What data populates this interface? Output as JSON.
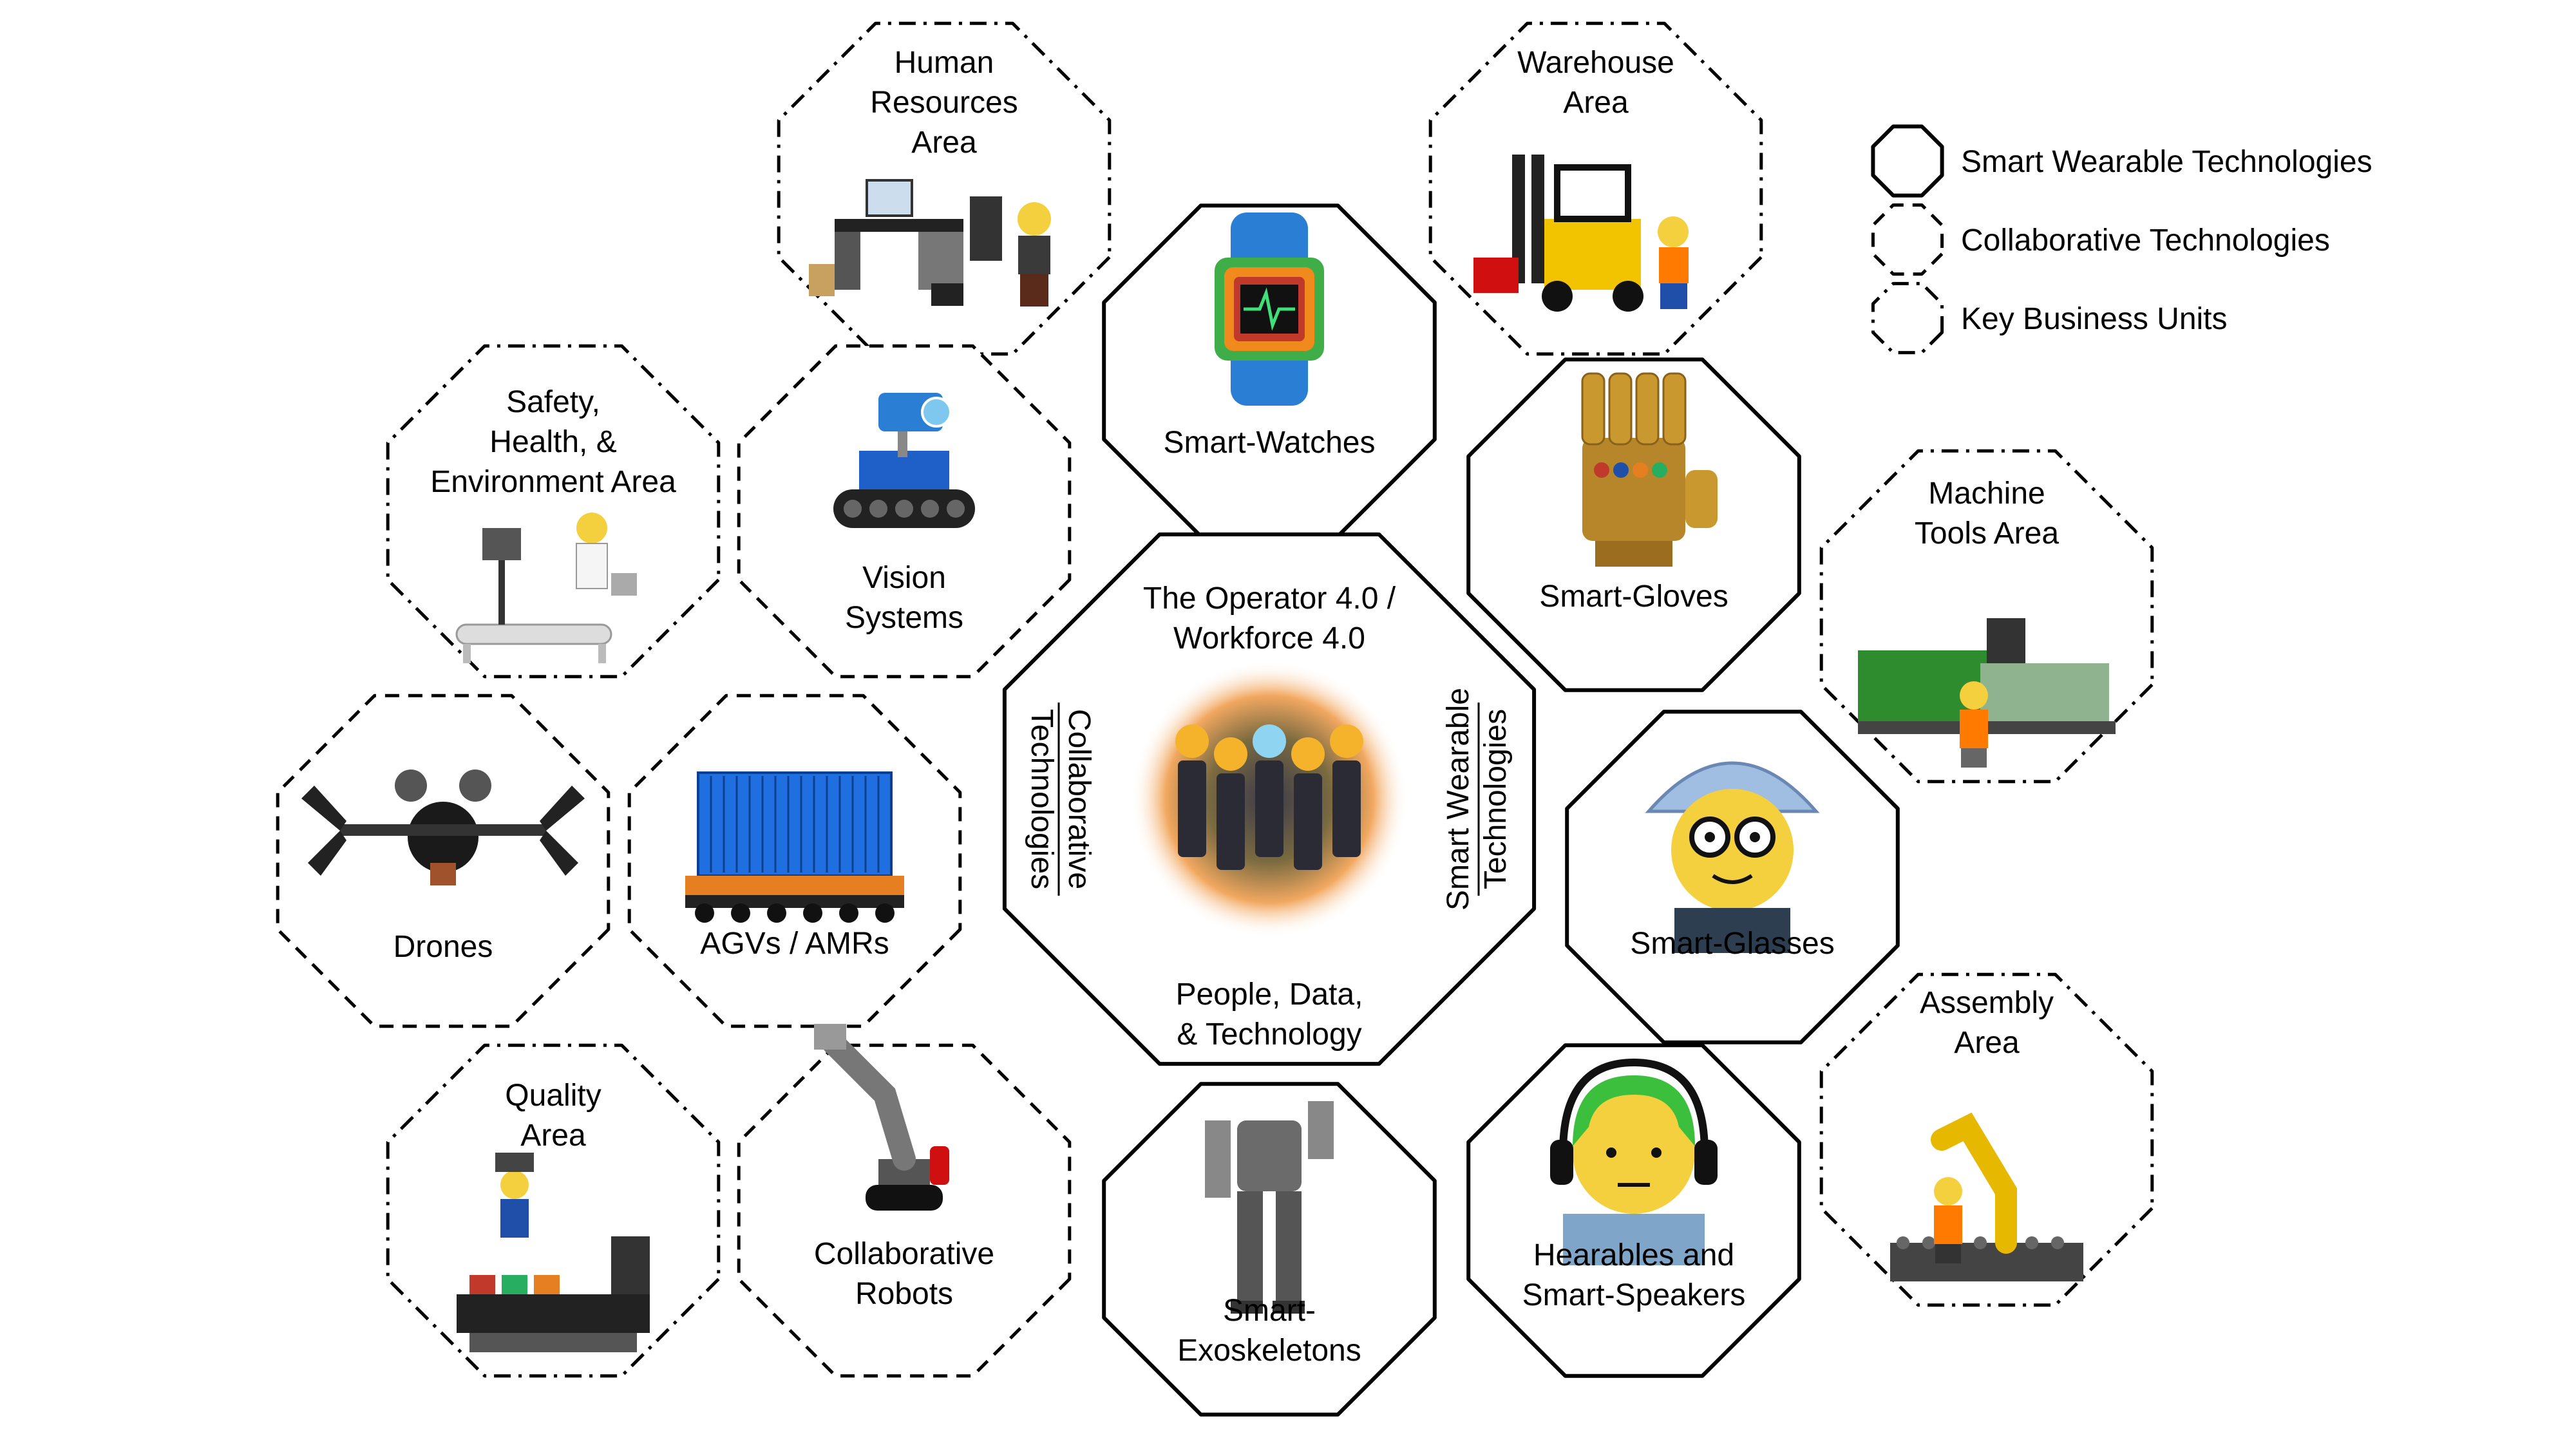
{
  "center": {
    "title": [
      "The Operator 4.0 /",
      "Workforce 4.0"
    ],
    "subtitle": [
      "People, Data,",
      "& Technology"
    ],
    "left_side": [
      "Collaborative",
      "Technologies"
    ],
    "right_side": [
      "Smart Wearable",
      "Technologies"
    ]
  },
  "legend": [
    {
      "style": "solid",
      "label": "Smart Wearable Technologies"
    },
    {
      "style": "dashed",
      "label": "Collaborative Technologies"
    },
    {
      "style": "dashdot",
      "label": "Key Business Units"
    }
  ],
  "nodes": [
    {
      "id": "human-resources",
      "style": "dashdot",
      "labels": [
        "Human",
        "Resources",
        "Area"
      ],
      "icon": "office-desk-icon"
    },
    {
      "id": "warehouse",
      "style": "dashdot",
      "labels": [
        "Warehouse",
        "Area"
      ],
      "icon": "forklift-icon"
    },
    {
      "id": "smart-watches",
      "style": "solid",
      "labels": [
        "Smart-Watches"
      ],
      "icon": "smart-watch-icon"
    },
    {
      "id": "safety-health-environment",
      "style": "dashdot",
      "labels": [
        "Safety,",
        "Health, &",
        "Environment Area"
      ],
      "icon": "medic-stretcher-icon"
    },
    {
      "id": "vision-systems",
      "style": "dashed",
      "labels": [
        "Vision",
        "Systems"
      ],
      "icon": "camera-rover-icon"
    },
    {
      "id": "smart-gloves",
      "style": "solid",
      "labels": [
        "Smart-Gloves"
      ],
      "icon": "glove-icon"
    },
    {
      "id": "machine-tools",
      "style": "dashdot",
      "labels": [
        "Machine",
        "Tools Area"
      ],
      "icon": "machine-tool-icon"
    },
    {
      "id": "drones",
      "style": "dashed",
      "labels": [
        "Drones"
      ],
      "icon": "drone-icon"
    },
    {
      "id": "agvs-amrs",
      "style": "dashed",
      "labels": [
        "AGVs / AMRs"
      ],
      "icon": "agv-container-icon"
    },
    {
      "id": "smart-glasses",
      "style": "solid",
      "labels": [
        "Smart-Glasses"
      ],
      "icon": "glasses-figure-icon"
    },
    {
      "id": "quality",
      "style": "dashdot",
      "labels": [
        "Quality",
        "Area"
      ],
      "icon": "quality-station-icon"
    },
    {
      "id": "collaborative-robots",
      "style": "dashed",
      "labels": [
        "Collaborative",
        "Robots"
      ],
      "icon": "robot-arm-icon"
    },
    {
      "id": "smart-exoskeletons",
      "style": "solid",
      "labels": [
        "Smart-",
        "Exoskeletons"
      ],
      "icon": "exoskeleton-icon"
    },
    {
      "id": "hearables",
      "style": "solid",
      "labels": [
        "Hearables and",
        "Smart-Speakers"
      ],
      "icon": "headset-figure-icon"
    },
    {
      "id": "assembly",
      "style": "dashdot",
      "labels": [
        "Assembly",
        "Area"
      ],
      "icon": "assembly-robot-icon"
    }
  ]
}
